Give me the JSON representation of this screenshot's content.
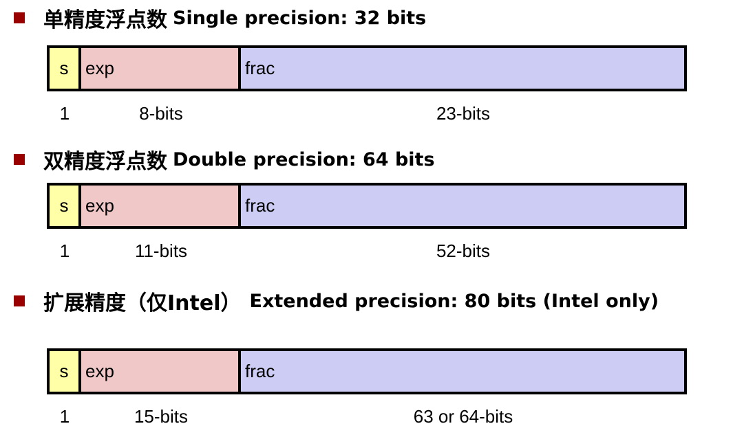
{
  "colors": {
    "bullet": "#990000",
    "sign": "#ffffa8",
    "exp": "#f0c8c8",
    "frac": "#ccccf4"
  },
  "formats": [
    {
      "title_cn": "单精度浮点数",
      "title_en": "Single precision: 32 bits",
      "s": "s",
      "exp": "exp",
      "frac": "frac",
      "s_bits": "1",
      "exp_bits": "8-bits",
      "frac_bits": "23-bits"
    },
    {
      "title_cn": "双精度浮点数",
      "title_en": "Double precision: 64 bits",
      "s": "s",
      "exp": "exp",
      "frac": "frac",
      "s_bits": "1",
      "exp_bits": "11-bits",
      "frac_bits": "52-bits"
    },
    {
      "title_cn": "扩展精度（仅Intel）",
      "title_en": "Extended precision: 80 bits (Intel only)",
      "s": "s",
      "exp": "exp",
      "frac": "frac",
      "s_bits": "1",
      "exp_bits": "15-bits",
      "frac_bits": "63 or 64-bits"
    }
  ]
}
